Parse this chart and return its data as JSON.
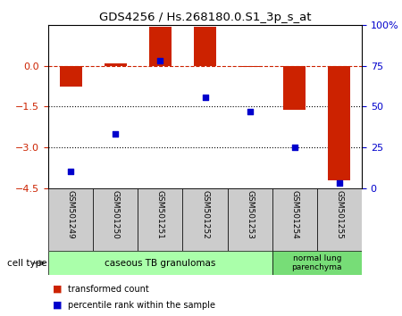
{
  "title": "GDS4256 / Hs.268180.0.S1_3p_s_at",
  "categories": [
    "GSM501249",
    "GSM501250",
    "GSM501251",
    "GSM501252",
    "GSM501253",
    "GSM501254",
    "GSM501255"
  ],
  "transformed_count": [
    -0.75,
    0.1,
    1.45,
    1.45,
    -0.05,
    -1.6,
    -4.2
  ],
  "percentile_rank": [
    10,
    33,
    78,
    56,
    47,
    25,
    3
  ],
  "bar_color": "#cc2200",
  "dot_color": "#0000cc",
  "ylim_left": [
    -4.5,
    1.5
  ],
  "yticks_left": [
    0,
    -1.5,
    -3,
    -4.5
  ],
  "ylim_right": [
    0,
    100
  ],
  "yticks_right": [
    0,
    25,
    50,
    75,
    100
  ],
  "group1_label": "caseous TB granulomas",
  "group2_label": "normal lung\nparenchyma",
  "group1_indices": [
    0,
    1,
    2,
    3,
    4
  ],
  "group2_indices": [
    5,
    6
  ],
  "group1_color": "#aaffaa",
  "group2_color": "#77dd77",
  "cell_type_label": "cell type",
  "legend1_label": "transformed count",
  "legend2_label": "percentile rank within the sample",
  "dotted_lines": [
    -1.5,
    -3
  ],
  "bar_width": 0.5
}
